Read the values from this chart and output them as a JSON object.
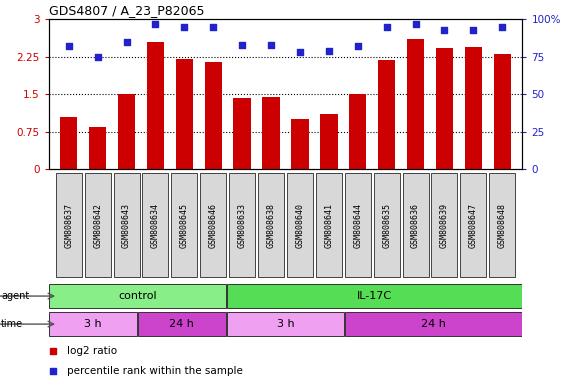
{
  "title": "GDS4807 / A_23_P82065",
  "samples": [
    "GSM808637",
    "GSM808642",
    "GSM808643",
    "GSM808634",
    "GSM808645",
    "GSM808646",
    "GSM808633",
    "GSM808638",
    "GSM808640",
    "GSM808641",
    "GSM808644",
    "GSM808635",
    "GSM808636",
    "GSM808639",
    "GSM808647",
    "GSM808648"
  ],
  "log2_ratio": [
    1.05,
    0.85,
    1.5,
    2.55,
    2.2,
    2.15,
    1.42,
    1.44,
    1.0,
    1.1,
    1.5,
    2.18,
    2.6,
    2.42,
    2.45,
    2.3
  ],
  "percentile": [
    82,
    75,
    85,
    97,
    95,
    95,
    83,
    83,
    78,
    79,
    82,
    95,
    97,
    93,
    93,
    95
  ],
  "bar_color": "#cc0000",
  "dot_color": "#2222cc",
  "ylim_left": [
    0,
    3
  ],
  "ylim_right": [
    0,
    100
  ],
  "yticks_left": [
    0,
    0.75,
    1.5,
    2.25,
    3
  ],
  "yticks_right": [
    0,
    25,
    50,
    75,
    100
  ],
  "hlines": [
    0.75,
    1.5,
    2.25
  ],
  "agent_groups": [
    {
      "label": "control",
      "start": 0,
      "end": 6,
      "color": "#88ee88"
    },
    {
      "label": "IL-17C",
      "start": 6,
      "end": 16,
      "color": "#55dd55"
    }
  ],
  "time_groups": [
    {
      "label": "3 h",
      "start": 0,
      "end": 3,
      "color": "#f0a0f0"
    },
    {
      "label": "24 h",
      "start": 3,
      "end": 6,
      "color": "#cc44cc"
    },
    {
      "label": "3 h",
      "start": 6,
      "end": 10,
      "color": "#f0a0f0"
    },
    {
      "label": "24 h",
      "start": 10,
      "end": 16,
      "color": "#cc44cc"
    }
  ],
  "legend_items": [
    {
      "color": "#cc0000",
      "label": "log2 ratio"
    },
    {
      "color": "#2222cc",
      "label": "percentile rank within the sample"
    }
  ],
  "background_color": "#ffffff",
  "plot_bg_color": "#ffffff",
  "label_box_color": "#d8d8d8",
  "figsize": [
    5.71,
    3.84
  ],
  "dpi": 100
}
